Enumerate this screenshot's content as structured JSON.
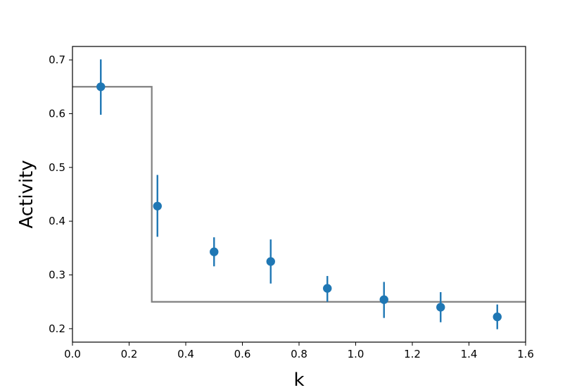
{
  "chart_data": {
    "type": "scatter",
    "title": "",
    "xlabel": "k",
    "ylabel": "Activity",
    "xlim": [
      0.0,
      1.6
    ],
    "ylim": [
      0.175,
      0.725
    ],
    "xticks": [
      "0.0",
      "0.2",
      "0.4",
      "0.6",
      "0.8",
      "1.0",
      "1.2",
      "1.4",
      "1.6"
    ],
    "yticks": [
      "0.2",
      "0.3",
      "0.4",
      "0.5",
      "0.6",
      "0.7"
    ],
    "grid": false,
    "series": [
      {
        "type": "errorbar",
        "color": "#1f77b4",
        "x": [
          0.1,
          0.3,
          0.5,
          0.7,
          0.9,
          1.1,
          1.3,
          1.5
        ],
        "y": [
          0.65,
          0.428,
          0.343,
          0.325,
          0.275,
          0.254,
          0.24,
          0.222
        ],
        "yerr_low": [
          0.598,
          0.371,
          0.316,
          0.284,
          0.25,
          0.22,
          0.212,
          0.199
        ],
        "yerr_high": [
          0.701,
          0.486,
          0.37,
          0.366,
          0.298,
          0.287,
          0.268,
          0.245
        ]
      },
      {
        "type": "step",
        "color": "#808080",
        "x": [
          0.0,
          0.28,
          0.28,
          1.6
        ],
        "y": [
          0.65,
          0.65,
          0.25,
          0.25
        ]
      }
    ]
  }
}
